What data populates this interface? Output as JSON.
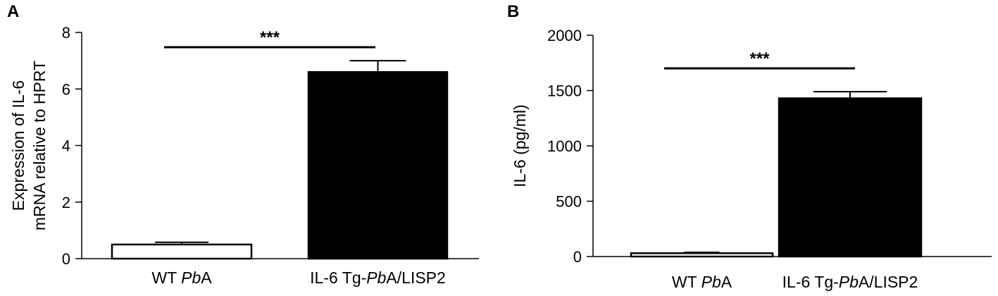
{
  "chart_data": [
    {
      "type": "bar",
      "panel": "A",
      "categories": [
        "WT PbA",
        "IL-6 Tg-PbA/LISP2"
      ],
      "category_parts": [
        [
          {
            "t": "WT ",
            "i": false
          },
          {
            "t": "Pb",
            "i": true
          },
          {
            "t": "A",
            "i": false
          }
        ],
        [
          {
            "t": "IL-6 Tg-",
            "i": false
          },
          {
            "t": "Pb",
            "i": true
          },
          {
            "t": "A/LISP2",
            "i": false
          }
        ]
      ],
      "values": [
        0.5,
        6.6
      ],
      "errors": [
        0.08,
        0.4
      ],
      "fills": [
        "#ffffff",
        "#000000"
      ],
      "ylabel_lines": [
        "Expression of IL-6",
        "mRNA relative to HPRT"
      ],
      "ylim": [
        0,
        8
      ],
      "yticks": [
        0,
        2,
        4,
        6,
        8
      ],
      "significance": "***",
      "grid": false
    },
    {
      "type": "bar",
      "panel": "B",
      "categories": [
        "WT PbA",
        "IL-6 Tg-PbA/LISP2"
      ],
      "category_parts": [
        [
          {
            "t": "WT ",
            "i": false
          },
          {
            "t": "Pb",
            "i": true
          },
          {
            "t": "A",
            "i": false
          }
        ],
        [
          {
            "t": "IL-6 Tg-",
            "i": false
          },
          {
            "t": "Pb",
            "i": true
          },
          {
            "t": "A/LISP2",
            "i": false
          }
        ]
      ],
      "values": [
        30,
        1430
      ],
      "errors": [
        8,
        60
      ],
      "fills": [
        "#ffffff",
        "#000000"
      ],
      "ylabel_lines": [
        "IL-6 (pg/ml)"
      ],
      "ylim": [
        0,
        2000
      ],
      "yticks": [
        0,
        500,
        1000,
        1500,
        2000
      ],
      "significance": "***",
      "grid": false
    }
  ],
  "colors": {
    "axis": "#000000",
    "bar_dark": "#000000",
    "bar_light": "#ffffff"
  }
}
